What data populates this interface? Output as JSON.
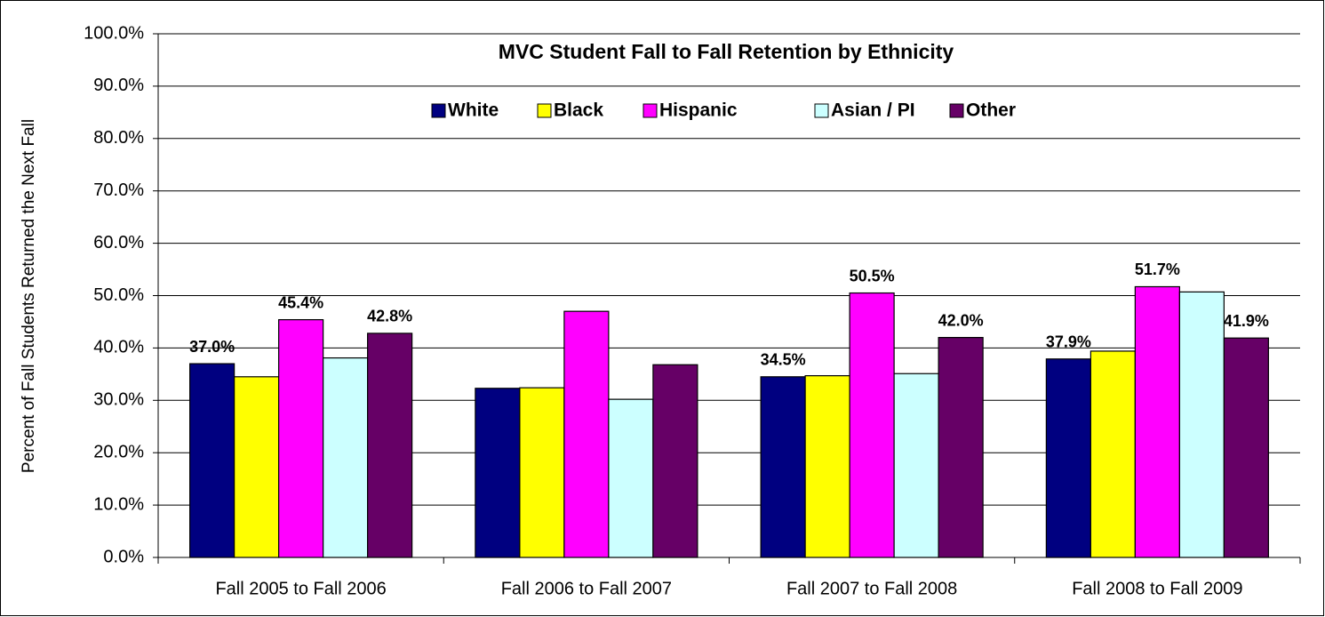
{
  "chart_data": {
    "type": "bar",
    "title": "MVC Student Fall to Fall Retention by Ethnicity",
    "y_label": "Percent of Fall Students Returned the Next Fall",
    "categories": [
      "Fall 2005 to Fall 2006",
      "Fall 2006 to Fall 2007",
      "Fall 2007 to Fall 2008",
      "Fall 2008 to Fall 2009"
    ],
    "series": [
      {
        "name": "White",
        "color": "#000080",
        "values": [
          37.0,
          32.3,
          34.5,
          37.9
        ],
        "value_labels": [
          "37.0%",
          null,
          "34.5%",
          "37.9%"
        ]
      },
      {
        "name": "Black",
        "color": "#ffff00",
        "values": [
          34.5,
          32.4,
          34.7,
          39.4
        ],
        "value_labels": [
          null,
          null,
          null,
          null
        ]
      },
      {
        "name": "Hispanic",
        "color": "#ff00ff",
        "values": [
          45.4,
          47.0,
          50.5,
          51.7
        ],
        "value_labels": [
          "45.4%",
          null,
          "50.5%",
          "51.7%"
        ]
      },
      {
        "name": "Asian / PI",
        "color": "#ccffff",
        "values": [
          38.1,
          30.2,
          35.1,
          50.7
        ],
        "value_labels": [
          null,
          null,
          null,
          null
        ]
      },
      {
        "name": "Other",
        "color": "#660066",
        "values": [
          42.8,
          36.8,
          42.0,
          41.9
        ],
        "value_labels": [
          "42.8%",
          null,
          "42.0%",
          "41.9%"
        ]
      }
    ],
    "ylim": [
      0,
      100
    ],
    "yticks": [
      {
        "value": 0,
        "label": "0.0%"
      },
      {
        "value": 10,
        "label": "10.0%"
      },
      {
        "value": 20,
        "label": "20.0%"
      },
      {
        "value": 30,
        "label": "30.0%"
      },
      {
        "value": 40,
        "label": "40.0%"
      },
      {
        "value": 50,
        "label": "50.0%"
      },
      {
        "value": 60,
        "label": "60.0%"
      },
      {
        "value": 70,
        "label": "70.0%"
      },
      {
        "value": 80,
        "label": "80.0%"
      },
      {
        "value": 90,
        "label": "90.0%"
      },
      {
        "value": 100,
        "label": "100.0%"
      }
    ],
    "grid": true,
    "legend": "top"
  }
}
